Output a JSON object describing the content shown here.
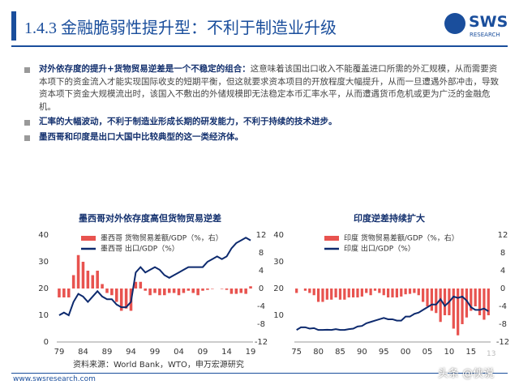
{
  "header": {
    "title": "1.4.3 金融脆弱性提升型：不利于制造业升级",
    "logo": "SWS",
    "logo_sub": "RESEARCH"
  },
  "bullets": [
    {
      "bold": "对外依存度的提升+货物贸易逆差是一个不稳定的组合：",
      "text": "这意味着该国出口收入不能覆盖进口所需的外汇规模，从而需要资本项下的资金流入才能实现国际收支的短期平衡，但这就要求资本项目的开放程度大幅提升，从而一旦遭遇外部冲击，导致资本项下资金大规模流出时，该国入不敷出的外储规模即无法稳定本币汇率水平，从而遭遇货币危机或更为广泛的金融危机。"
    },
    {
      "bold": "汇率的大幅波动，不利于制造业形成长期的研发能力，不利于持续的技术进步。"
    },
    {
      "bold": "墨西哥和印度是出口大国中比较典型的这一类经济体。"
    }
  ],
  "chart_data": [
    {
      "type": "bar_line",
      "title": "墨西哥对外依存度高但货物贸易逆差",
      "x": [
        1979,
        1980,
        1981,
        1982,
        1983,
        1984,
        1985,
        1986,
        1987,
        1988,
        1989,
        1990,
        1991,
        1992,
        1993,
        1994,
        1995,
        1996,
        1997,
        1998,
        1999,
        2000,
        2001,
        2002,
        2003,
        2004,
        2005,
        2006,
        2007,
        2008,
        2009,
        2010,
        2011,
        2012,
        2013,
        2014,
        2015,
        2016,
        2017,
        2018,
        2019
      ],
      "xlim": [
        1978.5,
        2019.5
      ],
      "xticks": [
        {
          "value": 1979,
          "label": "79"
        },
        {
          "value": 1984,
          "label": "84"
        },
        {
          "value": 1989,
          "label": "89"
        },
        {
          "value": 1994,
          "label": "94"
        },
        {
          "value": 1999,
          "label": "99"
        },
        {
          "value": 2004,
          "label": "04"
        },
        {
          "value": 2009,
          "label": "09"
        },
        {
          "value": 2014,
          "label": "14"
        },
        {
          "value": 2019,
          "label": "19"
        }
      ],
      "ylim": [
        0,
        40
      ],
      "yticks": [
        0,
        10,
        20,
        30,
        40
      ],
      "y2lim": [
        -12,
        12
      ],
      "y2ticks": [
        -12,
        -8,
        -4,
        0,
        4,
        8,
        12
      ],
      "series": [
        {
          "name": "墨西哥 货物贸易差额/GDP（%，右）",
          "kind": "bar",
          "axis": "y2",
          "color": "#e8534f",
          "values": [
            -2,
            -2,
            -2,
            3,
            7.5,
            6,
            4,
            3,
            4,
            1,
            -1,
            -1.5,
            -3,
            -5,
            -4.5,
            -5,
            1.5,
            1.5,
            -0.5,
            -1.5,
            -1,
            -1.5,
            -1.5,
            -1,
            -1,
            -1.5,
            -1,
            -0.5,
            -1,
            -1.5,
            -0.5,
            -0.3,
            -0.1,
            0,
            -0.1,
            -0.3,
            -1.2,
            -1.2,
            -1,
            -1.2,
            0.5
          ]
        },
        {
          "name": "墨西哥 出口/GDP（%）",
          "kind": "line",
          "color": "#0d2a6e",
          "values": [
            10,
            11,
            10,
            15,
            18,
            17,
            15,
            17,
            19,
            17,
            16,
            16,
            14,
            13,
            13,
            15,
            26,
            28,
            26,
            27,
            28,
            27,
            25,
            24,
            25,
            26,
            27,
            28,
            28,
            28,
            28,
            30,
            31,
            32,
            31,
            32,
            35,
            37,
            38,
            39,
            38
          ]
        }
      ]
    },
    {
      "type": "bar_line",
      "title": "印度逆差持续扩大",
      "x": [
        1975,
        1976,
        1977,
        1978,
        1979,
        1980,
        1981,
        1982,
        1983,
        1984,
        1985,
        1986,
        1987,
        1988,
        1989,
        1990,
        1991,
        1992,
        1993,
        1994,
        1995,
        1996,
        1997,
        1998,
        1999,
        2000,
        2001,
        2002,
        2003,
        2004,
        2005,
        2006,
        2007,
        2008,
        2009,
        2010,
        2011,
        2012,
        2013,
        2014,
        2015,
        2016,
        2017,
        2018,
        2019
      ],
      "xlim": [
        1974.5,
        2019.5
      ],
      "xticks": [
        {
          "value": 1975,
          "label": "75"
        },
        {
          "value": 1980,
          "label": "80"
        },
        {
          "value": 1985,
          "label": "85"
        },
        {
          "value": 1990,
          "label": "90"
        },
        {
          "value": 1995,
          "label": "95"
        },
        {
          "value": 2000,
          "label": "00"
        },
        {
          "value": 2005,
          "label": "05"
        },
        {
          "value": 2010,
          "label": "10"
        },
        {
          "value": 2015,
          "label": "15"
        }
      ],
      "ylim": [
        0,
        40
      ],
      "yticks": [
        10,
        20,
        30,
        40
      ],
      "y2lim": [
        -12,
        12
      ],
      "y2ticks": [
        -12,
        -8,
        -4,
        0,
        4,
        8,
        12
      ],
      "series": [
        {
          "name": "印度 货物贸易差额/GDP（%，右）",
          "kind": "bar",
          "axis": "y2",
          "color": "#e8534f",
          "values": [
            -1,
            0,
            -0.5,
            -1,
            -1.5,
            -3,
            -3,
            -2.5,
            -2.5,
            -2,
            -2.5,
            -2.5,
            -2,
            -2,
            -2,
            -1.8,
            -1,
            -1.5,
            -0.5,
            -1,
            -1.5,
            -2,
            -2,
            -2,
            -1.8,
            -1.3,
            -1.2,
            -1,
            -1.5,
            -3,
            -4,
            -5,
            -5.5,
            -7.5,
            -6,
            -6,
            -9,
            -10.5,
            -8,
            -6.5,
            -5,
            -4,
            -6,
            -7,
            -6
          ]
        },
        {
          "name": "印度 出口/GDP（%）",
          "kind": "line",
          "color": "#0d2a6e",
          "values": [
            4.5,
            5.5,
            5.5,
            5,
            5.2,
            4.5,
            4.5,
            4.6,
            4.5,
            4.8,
            4.5,
            4.5,
            4.8,
            5,
            5.8,
            6,
            7,
            7.5,
            8,
            8.5,
            9,
            8.5,
            8.5,
            8,
            8,
            9.5,
            9.5,
            10.5,
            11,
            12,
            13,
            14,
            14,
            16,
            13.5,
            15,
            17,
            16.5,
            17,
            15.5,
            13,
            12,
            12,
            12.5,
            11.5
          ]
        }
      ]
    }
  ],
  "source": "资料来源：World Bank，WTO，申万宏源研究",
  "footer": {
    "site": "www.swsresearch.com",
    "page": "13",
    "watermark": "头条 @侠说"
  }
}
